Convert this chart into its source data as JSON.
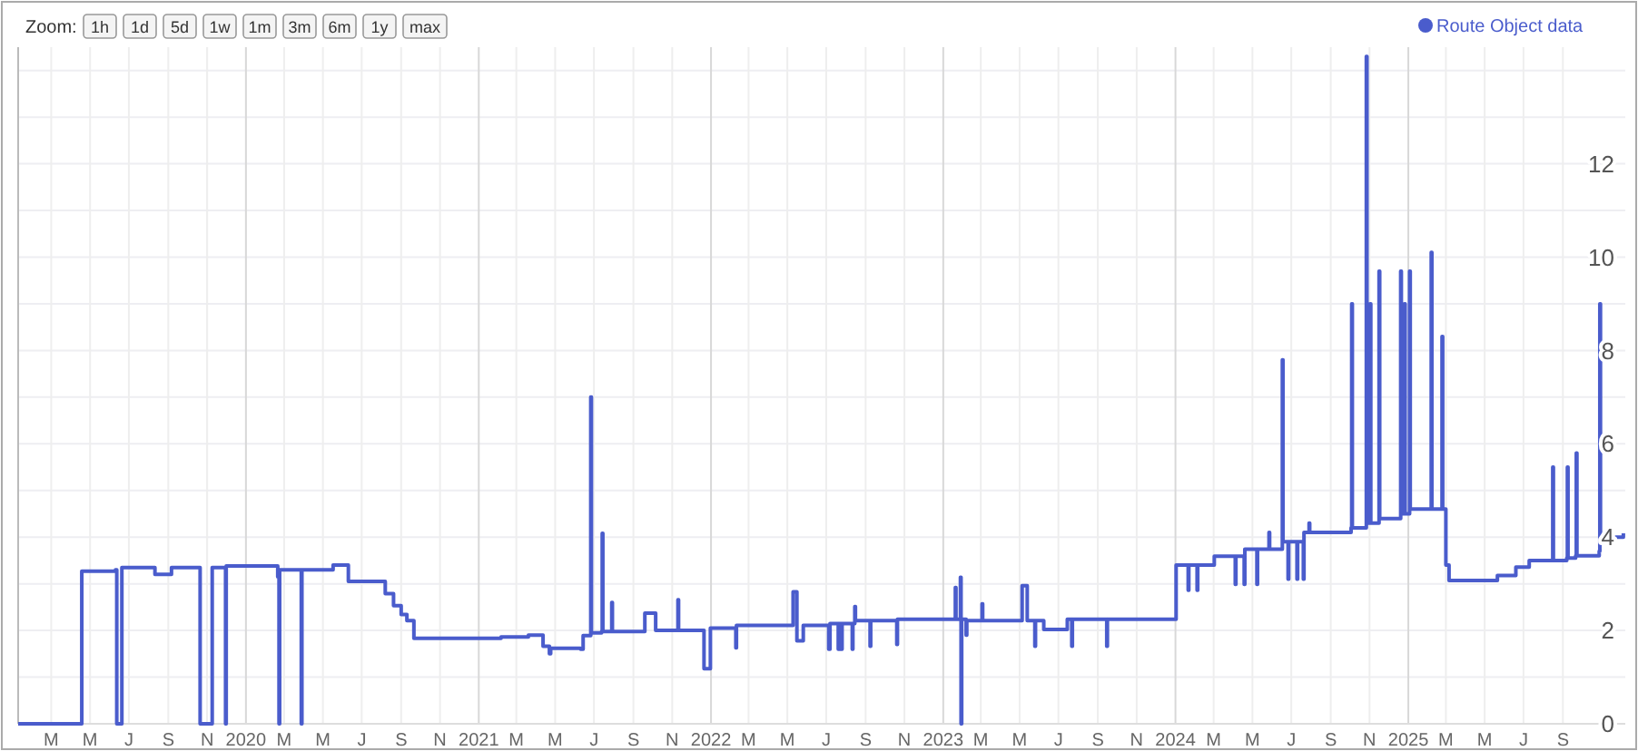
{
  "chart_data": {
    "type": "step",
    "annotations": [
      "Zoom:",
      "1h",
      "1d",
      "5d",
      "1w",
      "1m",
      "3m",
      "6m",
      "1y",
      "max"
    ],
    "legend": "top right",
    "grid": true,
    "marker": "none",
    "line_style": "solid",
    "xlim": [
      "2019-01-08",
      "2025-12-08"
    ],
    "xticks": [
      {
        "value": "2019-03-01",
        "label": "M"
      },
      {
        "value": "2019-05-01",
        "label": "M"
      },
      {
        "value": "2019-07-01",
        "label": "J"
      },
      {
        "value": "2019-09-01",
        "label": "S"
      },
      {
        "value": "2019-11-01",
        "label": "N"
      },
      {
        "value": "2020-01-01",
        "label": "2020"
      },
      {
        "value": "2020-03-01",
        "label": "M"
      },
      {
        "value": "2020-05-01",
        "label": "M"
      },
      {
        "value": "2020-07-01",
        "label": "J"
      },
      {
        "value": "2020-09-01",
        "label": "S"
      },
      {
        "value": "2020-11-01",
        "label": "N"
      },
      {
        "value": "2021-01-01",
        "label": "2021"
      },
      {
        "value": "2021-03-01",
        "label": "M"
      },
      {
        "value": "2021-05-01",
        "label": "M"
      },
      {
        "value": "2021-07-01",
        "label": "J"
      },
      {
        "value": "2021-09-01",
        "label": "S"
      },
      {
        "value": "2021-11-01",
        "label": "N"
      },
      {
        "value": "2022-01-01",
        "label": "2022"
      },
      {
        "value": "2022-03-01",
        "label": "M"
      },
      {
        "value": "2022-05-01",
        "label": "M"
      },
      {
        "value": "2022-07-01",
        "label": "J"
      },
      {
        "value": "2022-09-01",
        "label": "S"
      },
      {
        "value": "2022-11-01",
        "label": "N"
      },
      {
        "value": "2023-01-01",
        "label": "2023"
      },
      {
        "value": "2023-03-01",
        "label": "M"
      },
      {
        "value": "2023-05-01",
        "label": "M"
      },
      {
        "value": "2023-07-01",
        "label": "J"
      },
      {
        "value": "2023-09-01",
        "label": "S"
      },
      {
        "value": "2023-11-01",
        "label": "N"
      },
      {
        "value": "2024-01-01",
        "label": "2024"
      },
      {
        "value": "2024-03-01",
        "label": "M"
      },
      {
        "value": "2024-05-01",
        "label": "M"
      },
      {
        "value": "2024-07-01",
        "label": "J"
      },
      {
        "value": "2024-09-01",
        "label": "S"
      },
      {
        "value": "2024-11-01",
        "label": "N"
      },
      {
        "value": "2025-01-01",
        "label": "2025"
      },
      {
        "value": "2025-03-01",
        "label": "M"
      },
      {
        "value": "2025-05-01",
        "label": "M"
      },
      {
        "value": "2025-07-01",
        "label": "J"
      },
      {
        "value": "2025-09-01",
        "label": "S"
      }
    ],
    "ylim": [
      0,
      14.5
    ],
    "yticks": [
      0,
      {
        "value": 1,
        "label": null
      },
      2,
      {
        "value": 3,
        "label": null
      },
      4,
      {
        "value": 5,
        "label": null
      },
      6,
      {
        "value": 7,
        "label": null
      },
      8,
      {
        "value": 9,
        "label": null
      },
      10,
      {
        "value": 11,
        "label": null
      },
      12,
      {
        "value": 13,
        "label": null
      },
      {
        "value": 14,
        "label": null
      }
    ],
    "series": [
      {
        "name": "Route Object data",
        "color": "#4a5ccc",
        "x": [
          "2019-01-08",
          "2019-04-17",
          "2019-04-18",
          "2019-06-10",
          "2019-06-12",
          "2019-06-18",
          "2019-06-20",
          "2019-08-10",
          "2019-08-11",
          "2019-09-05",
          "2019-09-06",
          "2019-10-20",
          "2019-10-21",
          "2019-11-08",
          "2019-11-09",
          "2019-11-29",
          "2019-11-30",
          "2019-12-01",
          "2020-01-20",
          "2020-02-20",
          "2020-02-22",
          "2020-02-23",
          "2020-03-27",
          "2020-03-28",
          "2020-03-29",
          "2020-05-17",
          "2020-06-07",
          "2020-06-10",
          "2020-08-05",
          "2020-08-07",
          "2020-08-20",
          "2020-09-01",
          "2020-09-10",
          "2020-09-20",
          "2020-09-21",
          "2021-02-05",
          "2021-03-20",
          "2021-04-12",
          "2021-04-22",
          "2021-04-24",
          "2021-06-10",
          "2021-06-14",
          "2021-06-25",
          "2021-06-26",
          "2021-06-27",
          "2021-07-13",
          "2021-07-14",
          "2021-07-15",
          "2021-07-28",
          "2021-07-29",
          "2021-07-30",
          "2021-09-18",
          "2021-09-19",
          "2021-10-05",
          "2021-10-06",
          "2021-11-09",
          "2021-11-10",
          "2021-11-11",
          "2021-12-20",
          "2021-12-21",
          "2021-12-30",
          "2021-12-31",
          "2022-02-08",
          "2022-02-09",
          "2022-02-10",
          "2022-05-09",
          "2022-05-10",
          "2022-05-14",
          "2022-05-16",
          "2022-05-24",
          "2022-05-26",
          "2022-07-04",
          "2022-07-05",
          "2022-07-07",
          "2022-07-20",
          "2022-07-21",
          "2022-07-25",
          "2022-07-26",
          "2022-08-10",
          "2022-08-11",
          "2022-08-12",
          "2022-08-15",
          "2022-08-16",
          "2022-09-08",
          "2022-09-09",
          "2022-10-20",
          "2022-10-21",
          "2023-01-20",
          "2023-01-21",
          "2023-01-28",
          "2023-01-29",
          "2023-01-30",
          "2023-02-06",
          "2023-02-07",
          "2023-03-03",
          "2023-03-04",
          "2023-05-05",
          "2023-05-12",
          "2023-05-13",
          "2023-05-25",
          "2023-05-26",
          "2023-06-08",
          "2023-07-14",
          "2023-07-15",
          "2023-07-22",
          "2023-07-23",
          "2023-09-15",
          "2023-09-16",
          "2024-01-01",
          "2024-01-02",
          "2024-01-20",
          "2024-01-21",
          "2024-01-22",
          "2024-02-03",
          "2024-02-04",
          "2024-02-05",
          "2024-03-01",
          "2024-03-02",
          "2024-04-04",
          "2024-04-05",
          "2024-04-18",
          "2024-04-19",
          "2024-05-08",
          "2024-05-09",
          "2024-05-27",
          "2024-05-28",
          "2024-06-17",
          "2024-06-18",
          "2024-06-26",
          "2024-06-27",
          "2024-07-10",
          "2024-07-11",
          "2024-07-20",
          "2024-07-21",
          "2024-07-29",
          "2024-07-30",
          "2024-10-03",
          "2024-10-04",
          "2024-10-05",
          "2024-10-26",
          "2024-10-27",
          "2024-10-28",
          "2024-11-01",
          "2024-11-02",
          "2024-11-03",
          "2024-11-15",
          "2024-11-16",
          "2024-11-17",
          "2024-12-19",
          "2024-12-20",
          "2024-12-21",
          "2024-12-25",
          "2024-12-26",
          "2024-12-27",
          "2025-01-02",
          "2025-01-03",
          "2025-01-04",
          "2025-02-05",
          "2025-02-06",
          "2025-02-07",
          "2025-02-22",
          "2025-02-23",
          "2025-02-24",
          "2025-02-28",
          "2025-03-01",
          "2025-03-06",
          "2025-05-20",
          "2025-05-21",
          "2025-06-18",
          "2025-06-19",
          "2025-07-10",
          "2025-08-15",
          "2025-08-16",
          "2025-08-17",
          "2025-09-07",
          "2025-09-08",
          "2025-09-09",
          "2025-09-21",
          "2025-09-22",
          "2025-09-23",
          "2025-10-28",
          "2025-10-29",
          "2025-10-30",
          "2025-12-05"
        ],
        "values": [
          0,
          0,
          3.27,
          3.3,
          0,
          0,
          3.35,
          3.35,
          3.2,
          3.2,
          3.35,
          3.35,
          0,
          0,
          3.35,
          3.35,
          0,
          3.38,
          3.38,
          3.15,
          0,
          3.3,
          3.3,
          0,
          3.3,
          3.4,
          3.4,
          3.05,
          3.05,
          2.79,
          2.53,
          2.34,
          2.21,
          2.21,
          1.83,
          1.86,
          1.9,
          1.66,
          1.5,
          1.62,
          1.6,
          1.89,
          1.89,
          7.0,
          1.95,
          1.98,
          4.08,
          1.98,
          1.98,
          2.6,
          1.98,
          1.98,
          2.37,
          2.37,
          2.0,
          2.0,
          2.66,
          2.0,
          2.0,
          1.18,
          1.18,
          2.05,
          2.05,
          1.63,
          2.11,
          2.11,
          2.83,
          2.83,
          1.78,
          1.78,
          2.11,
          2.11,
          1.6,
          2.15,
          1.6,
          2.15,
          1.6,
          2.15,
          2.15,
          1.6,
          2.15,
          2.51,
          2.21,
          1.66,
          2.21,
          1.7,
          2.24,
          2.92,
          2.24,
          3.14,
          0,
          2.24,
          1.9,
          2.21,
          2.57,
          2.21,
          2.96,
          2.96,
          2.21,
          1.66,
          2.21,
          2.02,
          2.02,
          2.24,
          1.66,
          2.24,
          1.66,
          2.24,
          2.24,
          3.4,
          3.4,
          2.86,
          3.4,
          3.4,
          2.86,
          3.4,
          3.4,
          3.59,
          2.99,
          3.59,
          2.99,
          3.74,
          2.99,
          3.74,
          4.1,
          3.74,
          7.8,
          3.9,
          3.1,
          3.9,
          3.1,
          3.9,
          3.1,
          4.1,
          4.3,
          4.1,
          4.2,
          9.0,
          4.2,
          4.2,
          14.3,
          4.3,
          4.3,
          9.0,
          4.3,
          4.3,
          9.7,
          4.4,
          4.4,
          9.7,
          4.5,
          4.5,
          9.0,
          4.5,
          4.5,
          9.7,
          4.6,
          4.6,
          10.1,
          4.6,
          4.6,
          8.3,
          4.6,
          4.6,
          3.4,
          3.07,
          3.07,
          3.18,
          3.18,
          3.36,
          3.5,
          3.5,
          5.5,
          3.5,
          3.55,
          5.5,
          3.55,
          3.6,
          5.8,
          3.6,
          3.7,
          9.0,
          4.0,
          4.08
        ]
      }
    ]
  }
}
